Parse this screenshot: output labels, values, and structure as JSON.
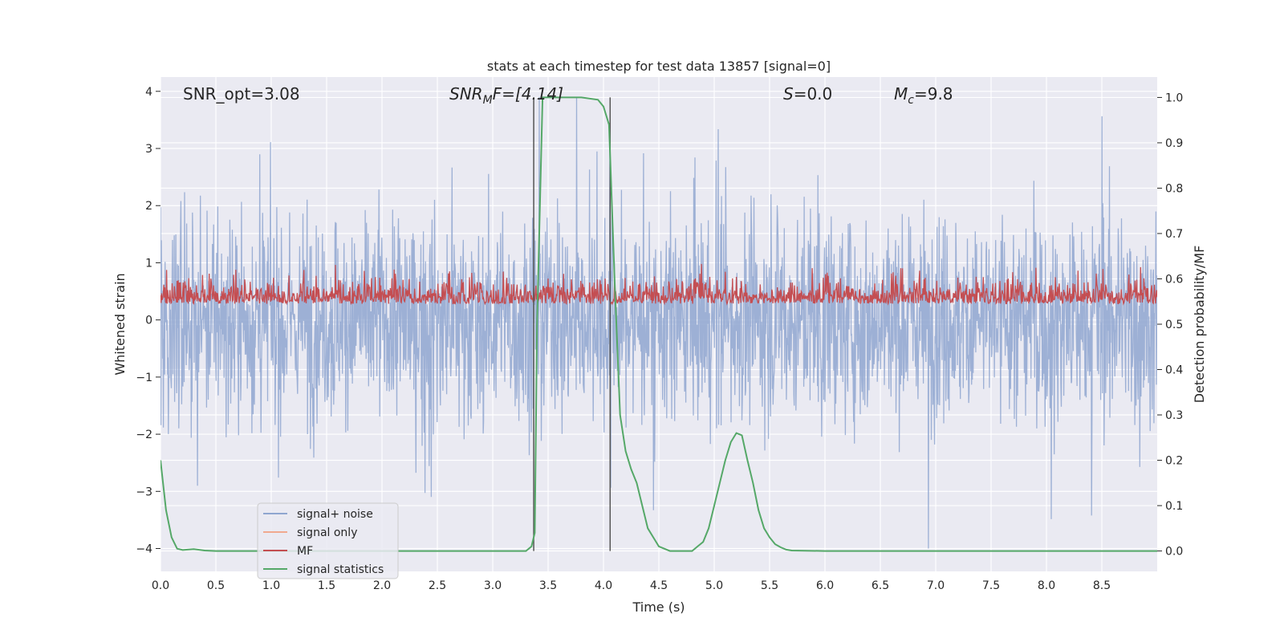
{
  "chart_data": {
    "type": "line",
    "title": "stats at each timestep for test data 13857 [signal=0]",
    "xlabel": "Time (s)",
    "ylabel": "Whitened strain",
    "ylabel_right": "Detection probability/MF",
    "xlim": [
      0,
      9.0
    ],
    "ylim": [
      -4.4,
      4.25
    ],
    "ylim_right": [
      -0.045,
      1.045
    ],
    "x_ticks": [
      "0.0",
      "0.5",
      "1.0",
      "1.5",
      "2.0",
      "2.5",
      "3.0",
      "3.5",
      "4.0",
      "4.5",
      "5.0",
      "5.5",
      "6.0",
      "6.5",
      "7.0",
      "7.5",
      "8.0",
      "8.5"
    ],
    "y_ticks": [
      "4",
      "3",
      "2",
      "1",
      "0",
      "−1",
      "−2",
      "−3",
      "−4"
    ],
    "y_ticks_right": [
      "1.0",
      "0.9",
      "0.8",
      "0.7",
      "0.6",
      "0.5",
      "0.4",
      "0.3",
      "0.2",
      "0.1",
      "0.0"
    ],
    "grid": true,
    "legend_position": "lower-left",
    "annotations": {
      "snr_opt": "SNR_opt=3.08",
      "snr_mf_base": "SNR",
      "snr_mf_sub": "M",
      "snr_mf_rest": "F=[4.14]",
      "s_label": "S",
      "s_value": "=0.0",
      "mc_base": "M",
      "mc_sub": "c",
      "mc_value": "=9.8"
    },
    "vertical_lines_x": [
      3.37,
      4.06
    ],
    "series": [
      {
        "name": "signal+ noise",
        "color": "#8fa6d0",
        "description_range": [
          -4.0,
          4.0
        ]
      },
      {
        "name": "signal only",
        "color": "#f0a98f",
        "values": []
      },
      {
        "name": "MF",
        "color": "#c44e52",
        "axis": "right",
        "description_range": [
          0.5,
          0.66
        ]
      },
      {
        "name": "signal statistics",
        "color": "#55a868",
        "axis": "right",
        "x": [
          0.0,
          0.05,
          0.1,
          0.15,
          0.2,
          0.3,
          0.4,
          0.5,
          1.0,
          2.0,
          3.0,
          3.3,
          3.35,
          3.38,
          3.4,
          3.45,
          3.5,
          3.8,
          3.95,
          4.0,
          4.05,
          4.1,
          4.15,
          4.2,
          4.25,
          4.3,
          4.35,
          4.4,
          4.45,
          4.5,
          4.6,
          4.7,
          4.8,
          4.85,
          4.9,
          4.95,
          5.0,
          5.05,
          5.1,
          5.15,
          5.2,
          5.25,
          5.3,
          5.35,
          5.4,
          5.45,
          5.5,
          5.55,
          5.6,
          5.65,
          5.7,
          6.0,
          7.0,
          8.0,
          9.0
        ],
        "values": [
          0.2,
          0.09,
          0.03,
          0.005,
          0.002,
          0.004,
          0.001,
          0.0,
          0.0,
          0.0,
          0.0,
          0.0,
          0.01,
          0.04,
          0.5,
          1.0,
          1.0,
          1.0,
          0.995,
          0.98,
          0.94,
          0.6,
          0.3,
          0.22,
          0.18,
          0.15,
          0.1,
          0.05,
          0.03,
          0.01,
          0.0,
          0.0,
          0.0,
          0.01,
          0.02,
          0.05,
          0.1,
          0.15,
          0.2,
          0.24,
          0.26,
          0.255,
          0.2,
          0.15,
          0.09,
          0.05,
          0.03,
          0.015,
          0.008,
          0.003,
          0.001,
          0.0,
          0.0,
          0.0,
          0.0
        ]
      }
    ]
  }
}
